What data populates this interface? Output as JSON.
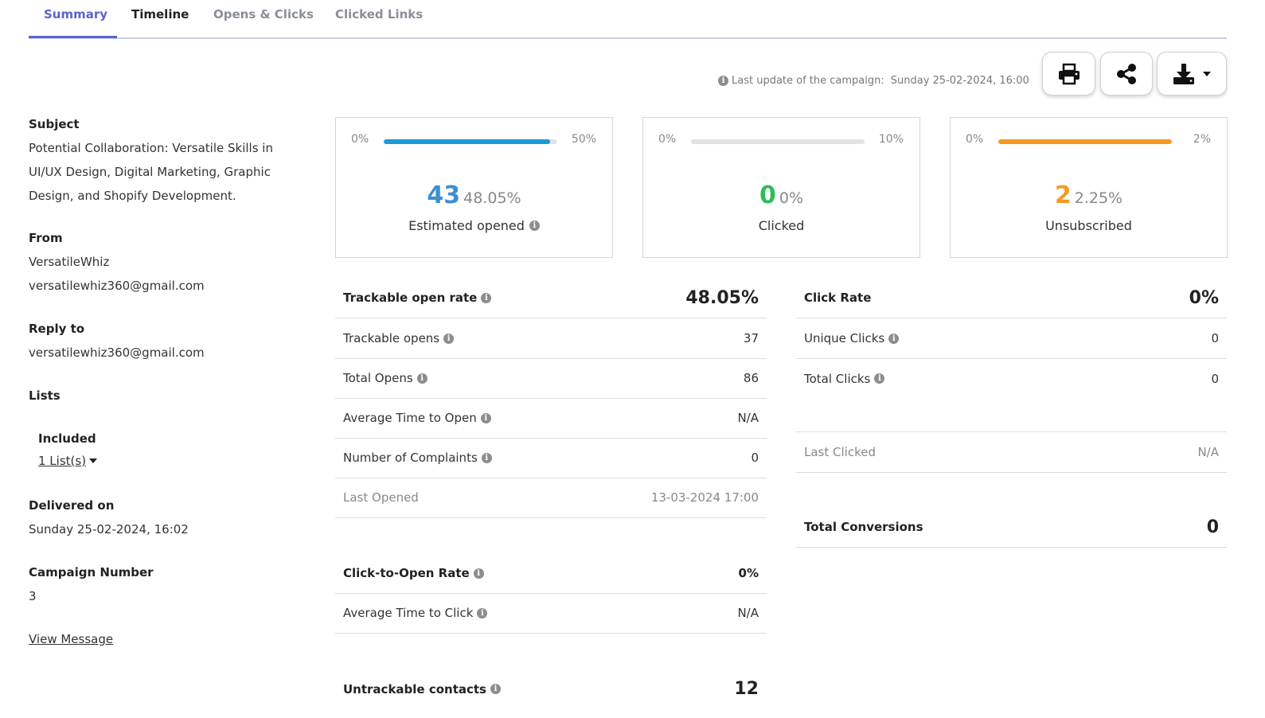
{
  "tabs": [
    {
      "label": "Summary"
    },
    {
      "label": "Timeline"
    },
    {
      "label": "Opens & Clicks"
    },
    {
      "label": "Clicked Links"
    }
  ],
  "header": {
    "last_update_label": "Last update of the campaign:",
    "last_update_value": "Sunday 25-02-2024, 16:00",
    "icons": {
      "print": "print-icon",
      "share": "share-icon",
      "download": "download-icon"
    }
  },
  "details": {
    "subject_label": "Subject",
    "subject_lines": [
      "Potential Collaboration: Versatile Skills in",
      "UI/UX Design, Digital Marketing, Graphic",
      "Design, and Shopify Development."
    ],
    "from_label": "From",
    "from_name": "VersatileWhiz",
    "from_email": "versatilewhiz360@gmail.com",
    "reply_label": "Reply to",
    "reply_email": "versatilewhiz360@gmail.com",
    "lists_label": "Lists",
    "included_label": "Included",
    "included_value": "1 List(s)",
    "delivered_label": "Delivered on",
    "delivered_value": "Sunday 25-02-2024, 16:02",
    "campaign_label": "Campaign Number",
    "campaign_value": "3",
    "view_message": "View Message"
  },
  "cards": [
    {
      "min": "0%",
      "max": "50%",
      "count": "43",
      "percent": "48.05%",
      "caption": "Estimated opened",
      "fill": 0.961,
      "color": "#1a9bd7",
      "count_color": "#3a8fd6"
    },
    {
      "min": "0%",
      "max": "10%",
      "count": "0",
      "percent": "0%",
      "caption": "Clicked",
      "fill": 0,
      "color": "#e3e3e3",
      "count_color": "#2ebc5a"
    },
    {
      "min": "0%",
      "max": "2%",
      "count": "2",
      "percent": "2.25%",
      "caption": "Unsubscribed",
      "fill": 1.0,
      "color": "#f59a23",
      "count_color": "#f59a23"
    }
  ],
  "open_metrics": {
    "rate_label": "Trackable open rate",
    "rate_value": "48.05%",
    "rows": [
      {
        "label": "Trackable opens",
        "value": "37"
      },
      {
        "label": "Total Opens",
        "value": "86"
      },
      {
        "label": "Average Time to Open",
        "value": "N/A"
      },
      {
        "label": "Number of Complaints",
        "value": "0"
      }
    ],
    "last_opened_label": "Last Opened",
    "last_opened_value": "13-03-2024 17:00",
    "cto_label": "Click-to-Open Rate",
    "cto_value": "0%",
    "avg_click_label": "Average Time to Click",
    "avg_click_value": "N/A",
    "untrackable_label": "Untrackable contacts",
    "untrackable_value": "12"
  },
  "click_metrics": {
    "rate_label": "Click Rate",
    "rate_value": "0%",
    "rows": [
      {
        "label": "Unique Clicks",
        "value": "0"
      },
      {
        "label": "Total Clicks",
        "value": "0"
      }
    ],
    "last_clicked_label": "Last Clicked",
    "last_clicked_value": "N/A",
    "conversions_label": "Total Conversions",
    "conversions_value": "0"
  },
  "colors": {
    "accent": "#5a64c8",
    "blue": "#1a9bd7",
    "green": "#2ebc5a",
    "orange": "#f59a23"
  }
}
